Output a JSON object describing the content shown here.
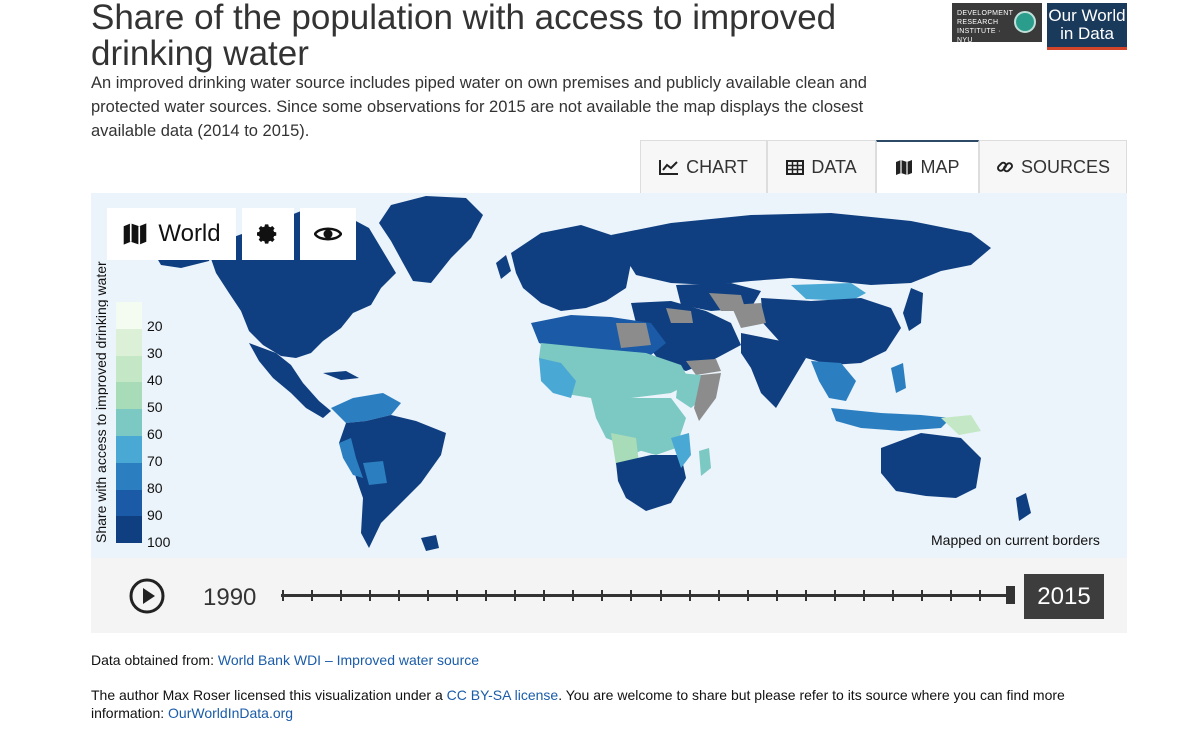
{
  "header": {
    "title": "Share of the population with access to improved drinking water",
    "subtitle": "An improved drinking water source includes piped water on own premises and publicly available clean and protected water sources. Since some observations for 2015 are not available the map displays the closest available data (2014 to 2015)."
  },
  "logos": {
    "dri_line1": "DEVELOPMENT",
    "dri_line2": "RESEARCH",
    "dri_line3": "INSTITUTE · NYU",
    "owid_line1": "Our World",
    "owid_line2": "in Data"
  },
  "tabs": [
    {
      "label": "CHART",
      "icon": "chart-icon"
    },
    {
      "label": "DATA",
      "icon": "table-icon"
    },
    {
      "label": "MAP",
      "icon": "map-icon",
      "active": true
    },
    {
      "label": "SOURCES",
      "icon": "link-icon"
    }
  ],
  "map_controls": {
    "region_label": "World"
  },
  "legend": {
    "title": "Share with access to improved drinking water",
    "labels": [
      "20",
      "30",
      "40",
      "50",
      "60",
      "70",
      "80",
      "90",
      "100"
    ],
    "colors": [
      "#f4fbf0",
      "#dcf0d8",
      "#c4e8c6",
      "#a8dcb8",
      "#7cc8c2",
      "#4aa8d4",
      "#2b7fc0",
      "#1a5aa6",
      "#0f3f80"
    ],
    "no_data_color": "#8c8c8c"
  },
  "map_note": "Mapped on current borders",
  "timeline": {
    "start_year": "1990",
    "end_year": "2015",
    "ticks": 26,
    "selected_fraction": 1.0
  },
  "footer": {
    "source_prefix": "Data obtained from: ",
    "source_link": "World Bank WDI – Improved water source",
    "license_prefix": "The author Max Roser licensed this visualization under a ",
    "license_link": "CC BY-SA license",
    "license_suffix": ". You are welcome to share but please refer to its source where you can find more information: ",
    "site_link": "OurWorldInData.org"
  }
}
